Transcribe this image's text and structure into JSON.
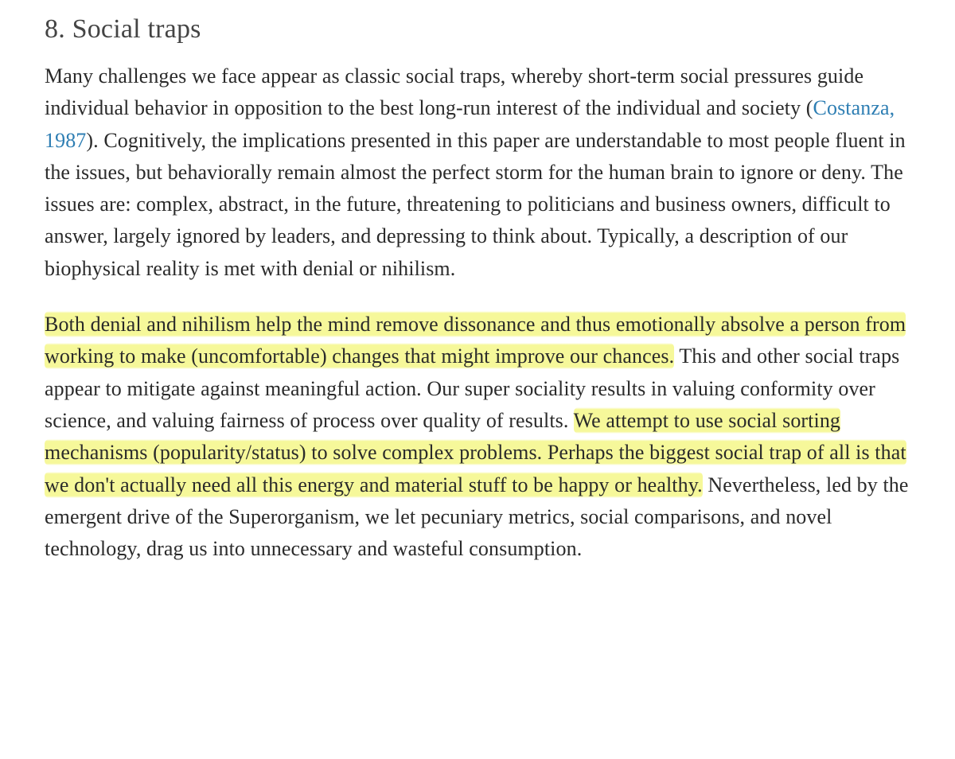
{
  "section": {
    "number": "8.",
    "title": "Social traps",
    "heading_color": "#444444",
    "heading_fontsize": 34
  },
  "citation": {
    "text": "Costanza, 1987",
    "link_color": "#2e7eb3"
  },
  "highlight_color": "#f6f89a",
  "body_fontsize": 26,
  "body_color": "#2a2a2a",
  "background_color": "#ffffff",
  "paragraphs": [
    {
      "runs": [
        {
          "text": "Many challenges we face appear as classic social traps, whereby short-term social pressures guide individual behavior in opposition to the best long-run interest of the individual and society (",
          "type": "plain"
        },
        {
          "text": "Costanza, 1987",
          "type": "link"
        },
        {
          "text": "). Cognitively, the implications presented in this paper are understandable to most people fluent in the issues, but behaviorally remain almost the perfect storm for the human brain to ignore or deny. The issues are: complex, abstract, in the future, threatening to politicians and business owners, difficult to answer, largely ignored by leaders, and depressing to think about. Typically, a description of our biophysical reality is met with denial or nihilism.",
          "type": "plain"
        }
      ]
    },
    {
      "runs": [
        {
          "text": "Both denial and nihilism help the mind remove dissonance and thus emotionally absolve a person from working to make (uncomfortable) changes that might improve our chances.",
          "type": "highlight"
        },
        {
          "text": " This and other social traps appear to mitigate against meaningful action. Our super sociality results in valuing conformity over science, and valuing fairness of process over quality of results. ",
          "type": "plain"
        },
        {
          "text": "We attempt to use social sorting mechanisms (popularity/status) to solve complex problems. Perhaps the biggest social trap of all is that we don't actually need all this energy and material stuff to be happy or healthy.",
          "type": "highlight"
        },
        {
          "text": " Nevertheless, led by the emergent drive of the Superorganism, we let pecuniary metrics, social comparisons, and novel technology, drag us into unnecessary and wasteful consumption.",
          "type": "plain"
        }
      ]
    }
  ]
}
